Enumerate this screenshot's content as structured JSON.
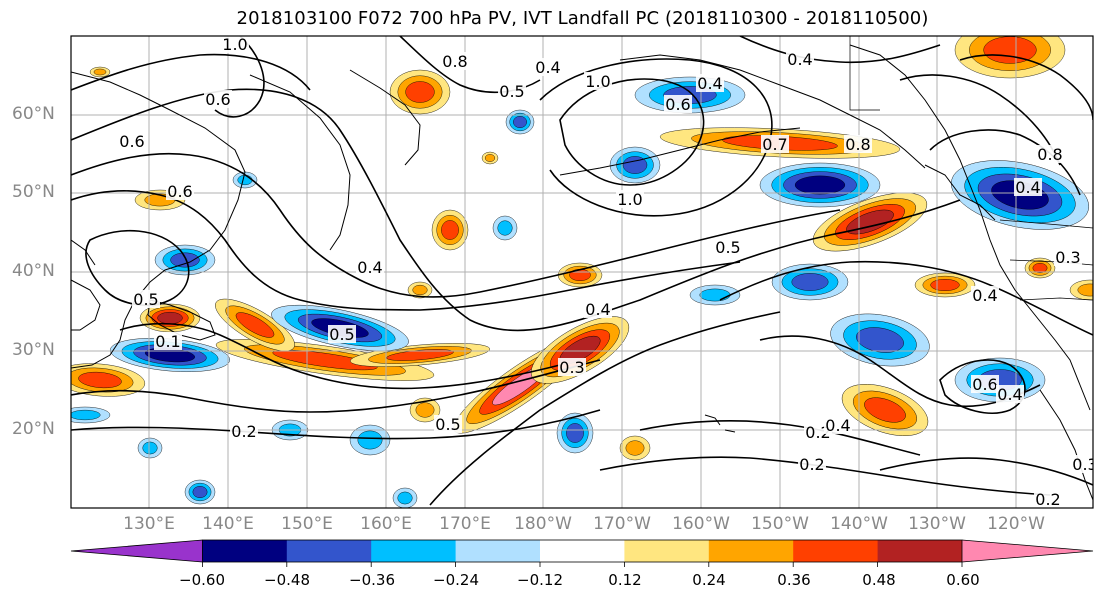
{
  "title": "2018103100 F072 700 hPa PV, IVT Landfall PC (2018110300 - 2018110500)",
  "map": {
    "lat_labels": [
      "60°N",
      "50°N",
      "40°N",
      "30°N",
      "20°N"
    ],
    "lon_labels": [
      "130°E",
      "140°E",
      "150°E",
      "160°E",
      "170°E",
      "180°W",
      "170°W",
      "160°W",
      "150°W",
      "140°W",
      "130°W",
      "120°W"
    ],
    "pv_contour_labels": [
      "1.0",
      "0.8",
      "0.6",
      "0.6",
      "0.6",
      "0.5",
      "0.4",
      "0.4",
      "0.4",
      "0.4",
      "0.5",
      "1.0",
      "0.5",
      "0.4",
      "0.3",
      "0.2",
      "0.2",
      "0.5",
      "0.7",
      "0.8",
      "0.8",
      "0.4",
      "0.3",
      "0.6",
      "0.4",
      "0.4",
      "0.2",
      "0.3",
      "0.2",
      "1.0",
      "0.1",
      "0.5",
      "0.6",
      "0.4"
    ],
    "colors": {
      "land_line": "#000000",
      "contour": "#000000",
      "grid": "#b0b0b0"
    }
  },
  "colorbar": {
    "ticks": [
      "−0.60",
      "−0.48",
      "−0.36",
      "−0.24",
      "−0.12",
      "0.12",
      "0.24",
      "0.36",
      "0.48",
      "0.60"
    ],
    "colors": [
      "#9933cc",
      "#000080",
      "#3355cc",
      "#00bfff",
      "#b0e0ff",
      "#ffffff",
      "#ffe680",
      "#ffa500",
      "#ff4000",
      "#b22222",
      "#ff88b0"
    ]
  }
}
